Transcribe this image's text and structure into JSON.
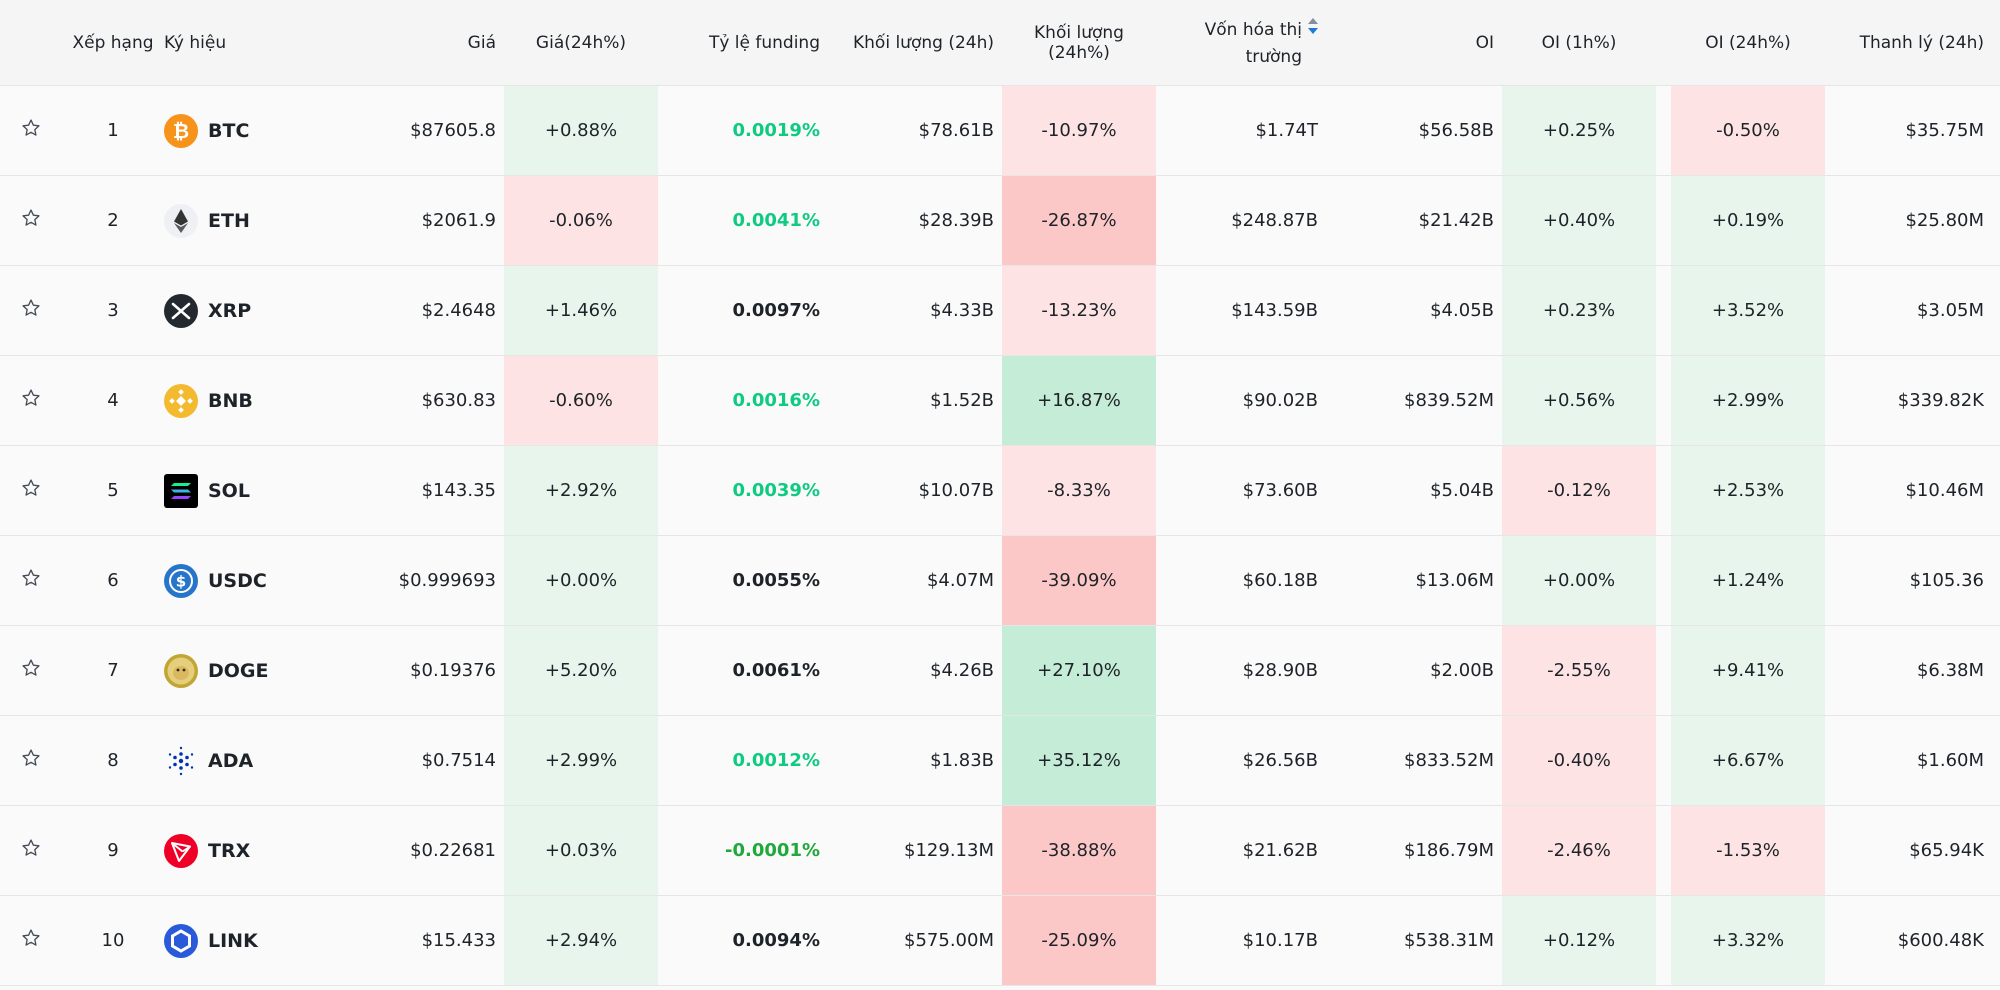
{
  "colors": {
    "green_light": "#e7f5ec",
    "green_mid": "#c4ecd6",
    "red_light": "#fde3e3",
    "red_mid": "#fcc7c7",
    "funding_green": "#0ecb81",
    "funding_negative": "#20a93a",
    "sort_up": "#848e9c",
    "sort_down": "#1d7bd8"
  },
  "headers": {
    "rank": "Xếp hạng",
    "symbol": "Ký hiệu",
    "price": "Giá",
    "price_change": "Giá(24h%)",
    "funding": "Tỷ lệ funding",
    "volume": "Khối lượng (24h)",
    "volume_change": "Khối lượng (24h%)",
    "market_cap_line1": "Vốn hóa thị",
    "market_cap_line2": "trường",
    "oi": "OI",
    "oi_1h": "OI (1h%)",
    "oi_24h": "OI (24h%)",
    "liquidation": "Thanh lý (24h)"
  },
  "rows": [
    {
      "rank": "1",
      "symbol": "BTC",
      "icon": "bitcoin-icon",
      "price": "$87605.8",
      "price_change": "+0.88%",
      "price_change_tone": "green_light",
      "funding": "0.0019%",
      "funding_tone": "funding_green",
      "volume": "$78.61B",
      "volume_change": "-10.97%",
      "volume_change_tone": "red_light",
      "market_cap": "$1.74T",
      "oi": "$56.58B",
      "oi_1h": "+0.25%",
      "oi_1h_tone": "green_light",
      "oi_24h": "-0.50%",
      "oi_24h_tone": "red_light",
      "liquidation": "$35.75M"
    },
    {
      "rank": "2",
      "symbol": "ETH",
      "icon": "ethereum-icon",
      "price": "$2061.9",
      "price_change": "-0.06%",
      "price_change_tone": "red_light",
      "funding": "0.0041%",
      "funding_tone": "funding_green",
      "volume": "$28.39B",
      "volume_change": "-26.87%",
      "volume_change_tone": "red_mid",
      "market_cap": "$248.87B",
      "oi": "$21.42B",
      "oi_1h": "+0.40%",
      "oi_1h_tone": "green_light",
      "oi_24h": "+0.19%",
      "oi_24h_tone": "green_light",
      "liquidation": "$25.80M"
    },
    {
      "rank": "3",
      "symbol": "XRP",
      "icon": "xrp-icon",
      "price": "$2.4648",
      "price_change": "+1.46%",
      "price_change_tone": "green_light",
      "funding": "0.0097%",
      "funding_tone": "dark",
      "volume": "$4.33B",
      "volume_change": "-13.23%",
      "volume_change_tone": "red_light",
      "market_cap": "$143.59B",
      "oi": "$4.05B",
      "oi_1h": "+0.23%",
      "oi_1h_tone": "green_light",
      "oi_24h": "+3.52%",
      "oi_24h_tone": "green_light",
      "liquidation": "$3.05M"
    },
    {
      "rank": "4",
      "symbol": "BNB",
      "icon": "bnb-icon",
      "price": "$630.83",
      "price_change": "-0.60%",
      "price_change_tone": "red_light",
      "funding": "0.0016%",
      "funding_tone": "funding_green",
      "volume": "$1.52B",
      "volume_change": "+16.87%",
      "volume_change_tone": "green_mid",
      "market_cap": "$90.02B",
      "oi": "$839.52M",
      "oi_1h": "+0.56%",
      "oi_1h_tone": "green_light",
      "oi_24h": "+2.99%",
      "oi_24h_tone": "green_light",
      "liquidation": "$339.82K"
    },
    {
      "rank": "5",
      "symbol": "SOL",
      "icon": "solana-icon",
      "price": "$143.35",
      "price_change": "+2.92%",
      "price_change_tone": "green_light",
      "funding": "0.0039%",
      "funding_tone": "funding_green",
      "volume": "$10.07B",
      "volume_change": "-8.33%",
      "volume_change_tone": "red_light",
      "market_cap": "$73.60B",
      "oi": "$5.04B",
      "oi_1h": "-0.12%",
      "oi_1h_tone": "red_light",
      "oi_24h": "+2.53%",
      "oi_24h_tone": "green_light",
      "liquidation": "$10.46M"
    },
    {
      "rank": "6",
      "symbol": "USDC",
      "icon": "usdc-icon",
      "price": "$0.999693",
      "price_change": "+0.00%",
      "price_change_tone": "green_light",
      "funding": "0.0055%",
      "funding_tone": "dark",
      "volume": "$4.07M",
      "volume_change": "-39.09%",
      "volume_change_tone": "red_mid",
      "market_cap": "$60.18B",
      "oi": "$13.06M",
      "oi_1h": "+0.00%",
      "oi_1h_tone": "green_light",
      "oi_24h": "+1.24%",
      "oi_24h_tone": "green_light",
      "liquidation": "$105.36"
    },
    {
      "rank": "7",
      "symbol": "DOGE",
      "icon": "doge-icon",
      "price": "$0.19376",
      "price_change": "+5.20%",
      "price_change_tone": "green_light",
      "funding": "0.0061%",
      "funding_tone": "dark",
      "volume": "$4.26B",
      "volume_change": "+27.10%",
      "volume_change_tone": "green_mid",
      "market_cap": "$28.90B",
      "oi": "$2.00B",
      "oi_1h": "-2.55%",
      "oi_1h_tone": "red_light",
      "oi_24h": "+9.41%",
      "oi_24h_tone": "green_light",
      "liquidation": "$6.38M"
    },
    {
      "rank": "8",
      "symbol": "ADA",
      "icon": "cardano-icon",
      "price": "$0.7514",
      "price_change": "+2.99%",
      "price_change_tone": "green_light",
      "funding": "0.0012%",
      "funding_tone": "funding_green",
      "volume": "$1.83B",
      "volume_change": "+35.12%",
      "volume_change_tone": "green_mid",
      "market_cap": "$26.56B",
      "oi": "$833.52M",
      "oi_1h": "-0.40%",
      "oi_1h_tone": "red_light",
      "oi_24h": "+6.67%",
      "oi_24h_tone": "green_light",
      "liquidation": "$1.60M"
    },
    {
      "rank": "9",
      "symbol": "TRX",
      "icon": "tron-icon",
      "price": "$0.22681",
      "price_change": "+0.03%",
      "price_change_tone": "green_light",
      "funding": "-0.0001%",
      "funding_tone": "funding_negative",
      "volume": "$129.13M",
      "volume_change": "-38.88%",
      "volume_change_tone": "red_mid",
      "market_cap": "$21.62B",
      "oi": "$186.79M",
      "oi_1h": "-2.46%",
      "oi_1h_tone": "red_light",
      "oi_24h": "-1.53%",
      "oi_24h_tone": "red_light",
      "liquidation": "$65.94K"
    },
    {
      "rank": "10",
      "symbol": "LINK",
      "icon": "chainlink-icon",
      "price": "$15.433",
      "price_change": "+2.94%",
      "price_change_tone": "green_light",
      "funding": "0.0094%",
      "funding_tone": "dark",
      "volume": "$575.00M",
      "volume_change": "-25.09%",
      "volume_change_tone": "red_mid",
      "market_cap": "$10.17B",
      "oi": "$538.31M",
      "oi_1h": "+0.12%",
      "oi_1h_tone": "green_light",
      "oi_24h": "+3.32%",
      "oi_24h_tone": "green_light",
      "liquidation": "$600.48K"
    }
  ]
}
